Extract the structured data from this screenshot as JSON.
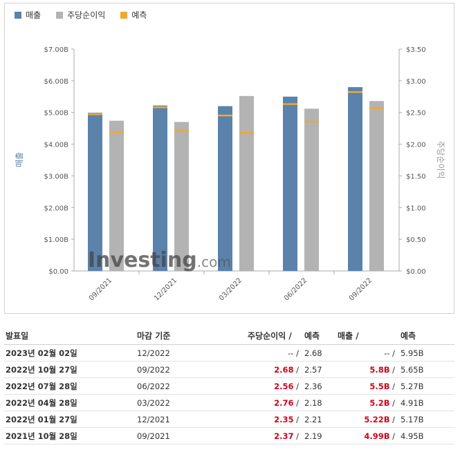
{
  "legend": [
    {
      "label": "매출",
      "color": "#5b82ab"
    },
    {
      "label": "주당순이익",
      "color": "#b3b3b3"
    },
    {
      "label": "예측",
      "color": "#f0a830"
    }
  ],
  "watermark": "Investing.com",
  "chart_data": {
    "type": "bar",
    "categories": [
      "09/2021",
      "12/2021",
      "03/2022",
      "06/2022",
      "09/2022"
    ],
    "ylabel_left": "매출",
    "ylabel_right": "주당순이익",
    "ylim_left": [
      0,
      7
    ],
    "ylim_right": [
      0,
      3.5
    ],
    "yticks_left": [
      "$0.00",
      "$1.00B",
      "$2.00B",
      "$3.00B",
      "$4.00B",
      "$5.00B",
      "$6.00B",
      "$7.00B"
    ],
    "yticks_right": [
      "$0.00",
      "$0.50",
      "$1.00",
      "$1.50",
      "$2.00",
      "$2.50",
      "$3.00",
      "$3.50"
    ],
    "series": [
      {
        "name": "매출",
        "axis": "left",
        "values": [
          4.99,
          5.22,
          5.2,
          5.5,
          5.8
        ],
        "forecast": [
          4.95,
          5.17,
          4.91,
          5.27,
          5.65
        ]
      },
      {
        "name": "주당순이익",
        "axis": "right",
        "values": [
          2.37,
          2.35,
          2.76,
          2.56,
          2.68
        ],
        "forecast": [
          2.19,
          2.21,
          2.18,
          2.36,
          2.57
        ]
      }
    ],
    "colors": {
      "revenue": "#5b82ab",
      "eps": "#b3b3b3",
      "forecast": "#f0a830"
    }
  },
  "table": {
    "headers": {
      "date": "발표일",
      "period": "마감 기준",
      "eps": "주당순이익",
      "eps_sep": "/",
      "eps_forecast": "예측",
      "revenue": "매출",
      "revenue_sep": "/",
      "revenue_forecast": "예측"
    },
    "rows": [
      {
        "date": "2023년 02월 02일",
        "period": "12/2022",
        "eps": "--",
        "eps_forecast": "2.68",
        "revenue": "--",
        "revenue_forecast": "5.95B",
        "eps_red": false,
        "rev_red": false
      },
      {
        "date": "2022년 10월 27일",
        "period": "09/2022",
        "eps": "2.68",
        "eps_forecast": "2.57",
        "revenue": "5.8B",
        "revenue_forecast": "5.65B",
        "eps_red": true,
        "rev_red": true
      },
      {
        "date": "2022년 07월 28일",
        "period": "06/2022",
        "eps": "2.56",
        "eps_forecast": "2.36",
        "revenue": "5.5B",
        "revenue_forecast": "5.27B",
        "eps_red": true,
        "rev_red": true
      },
      {
        "date": "2022년 04월 28일",
        "period": "03/2022",
        "eps": "2.76",
        "eps_forecast": "2.18",
        "revenue": "5.2B",
        "revenue_forecast": "4.91B",
        "eps_red": true,
        "rev_red": true
      },
      {
        "date": "2022년 01월 27일",
        "period": "12/2021",
        "eps": "2.35",
        "eps_forecast": "2.21",
        "revenue": "5.22B",
        "revenue_forecast": "5.17B",
        "eps_red": true,
        "rev_red": true
      },
      {
        "date": "2021년 10월 28일",
        "period": "09/2021",
        "eps": "2.37",
        "eps_forecast": "2.19",
        "revenue": "4.99B",
        "revenue_forecast": "4.95B",
        "eps_red": true,
        "rev_red": true
      }
    ]
  }
}
